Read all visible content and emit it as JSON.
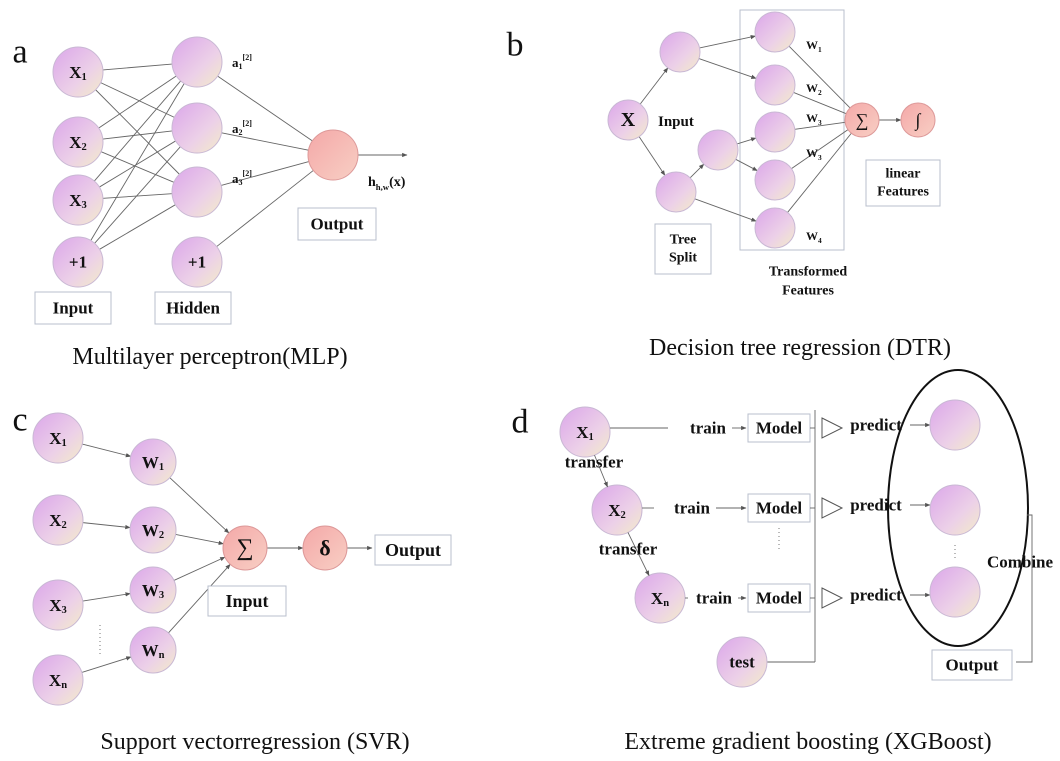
{
  "panels": [
    {
      "letter": "a",
      "caption": "Multilayer perceptron(MLP)",
      "input_nodes": [
        {
          "main": "X",
          "sub": "1"
        },
        {
          "main": "X",
          "sub": "2"
        },
        {
          "main": "X",
          "sub": "3"
        },
        "+1"
      ],
      "hidden_bias": "+1",
      "activations": [
        {
          "main": "a",
          "sub": "1",
          "sup": "[2]"
        },
        {
          "main": "a",
          "sub": "2",
          "sup": "[2]"
        },
        {
          "main": "a",
          "sub": "3",
          "sup": "[2]"
        }
      ],
      "output_label": {
        "main": "h",
        "sub": "h,w",
        "rest": "(x)"
      },
      "output_box": "Output",
      "input_box": "Input",
      "hidden_box": "Hidden"
    },
    {
      "letter": "b",
      "caption": "Decision tree regression (DTR)",
      "root": "X",
      "input_label": "Input",
      "weights": [
        {
          "main": "W",
          "sub": "1"
        },
        {
          "main": "W",
          "sub": "2"
        },
        {
          "main": "W",
          "sub": "3"
        },
        {
          "main": "W",
          "sub": "3"
        },
        {
          "main": "W",
          "sub": "4"
        }
      ],
      "sum": "∑",
      "sigmoid": "∫",
      "linear_box": [
        "linear",
        "Features"
      ],
      "split_box": [
        "Tree",
        "Split"
      ],
      "transformed_label": [
        "Transformed",
        "Features"
      ]
    },
    {
      "letter": "c",
      "caption": "Support vectorregression (SVR)",
      "inputs": [
        {
          "main": "X",
          "sub": "1"
        },
        {
          "main": "X",
          "sub": "2"
        },
        {
          "main": "X",
          "sub": "3"
        },
        {
          "main": "X",
          "sub": "n"
        }
      ],
      "weights": [
        {
          "main": "W",
          "sub": "1"
        },
        {
          "main": "W",
          "sub": "2"
        },
        {
          "main": "W",
          "sub": "3"
        },
        {
          "main": "W",
          "sub": "n"
        }
      ],
      "sum": "∑",
      "delta": "δ",
      "output_box": "Output",
      "input_box": "Input"
    },
    {
      "letter": "d",
      "caption": "Extreme gradient boosting (XGBoost)",
      "inputs": [
        {
          "main": "X",
          "sub": "1"
        },
        {
          "main": "X",
          "sub": "2"
        },
        {
          "main": "X",
          "sub": "n"
        }
      ],
      "test": "test",
      "train": [
        "train",
        "train",
        "train"
      ],
      "transfer": [
        "transfer",
        "transfer"
      ],
      "model": [
        "Model",
        "Model",
        "Model"
      ],
      "predict": [
        "predict",
        "predict",
        "predict"
      ],
      "combine": "Combine",
      "output_box": "Output"
    }
  ]
}
